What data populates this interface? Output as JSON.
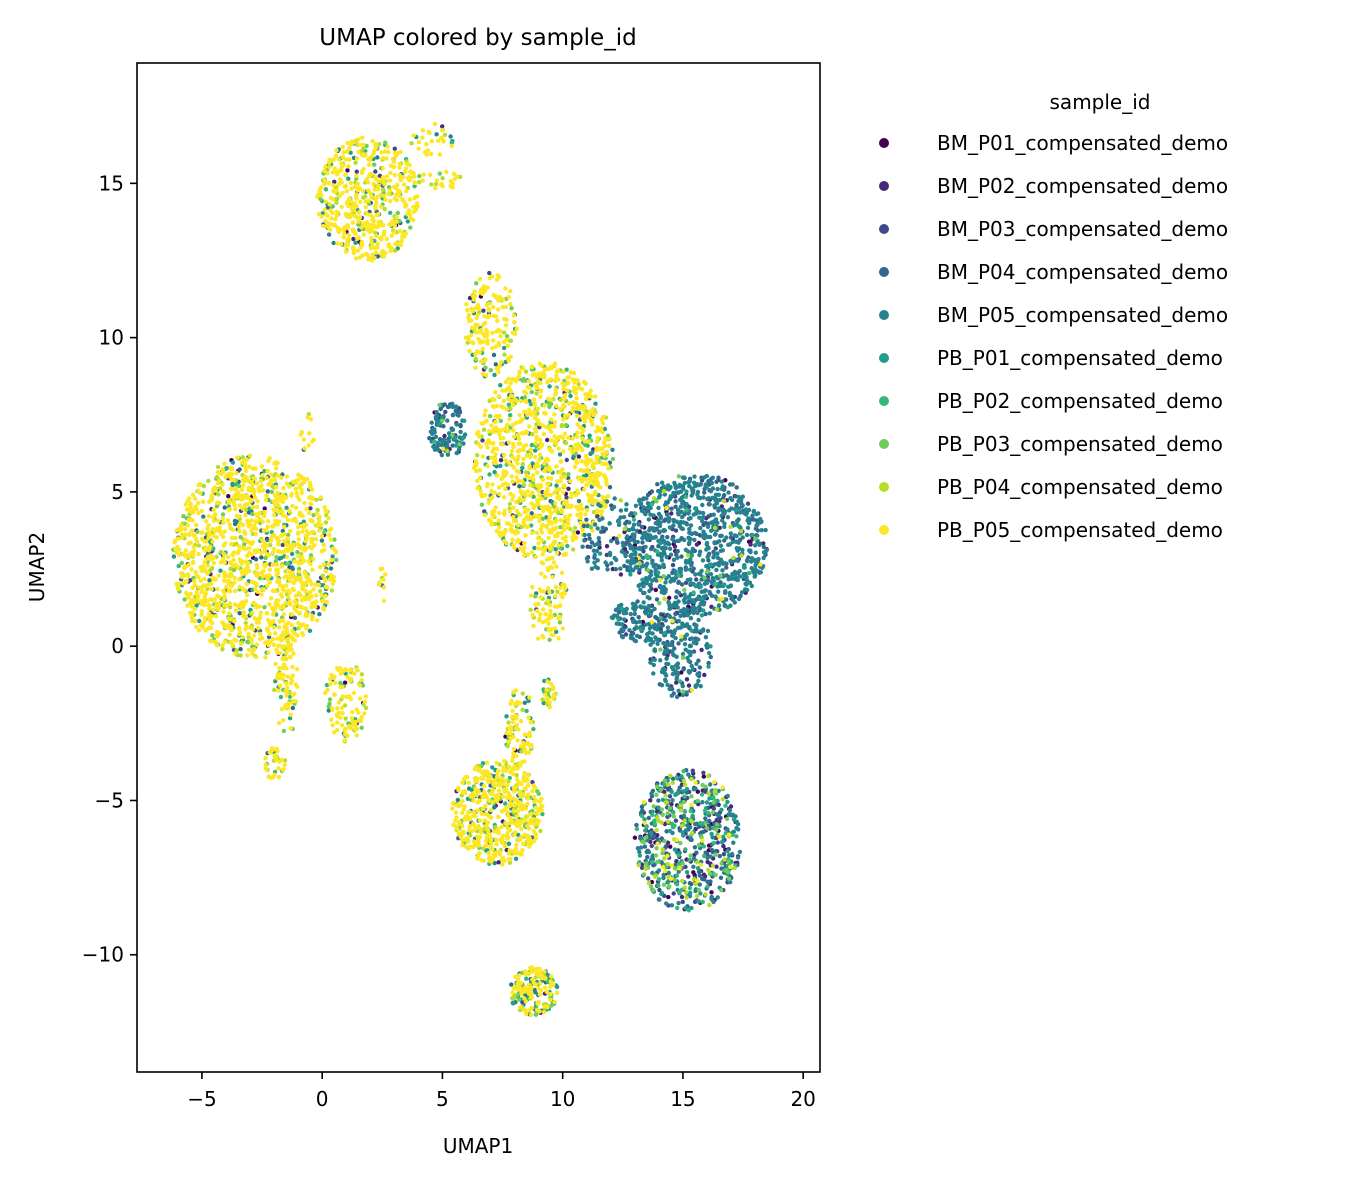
{
  "chart_data": {
    "type": "scatter",
    "title": "UMAP colored by sample_id",
    "xlabel": "UMAP1",
    "ylabel": "UMAP2",
    "xlim": [
      -7.7,
      20.7
    ],
    "ylim": [
      -13.8,
      18.9
    ],
    "xticks": [
      -5,
      0,
      5,
      10,
      15,
      20
    ],
    "xtick_labels": [
      "−5",
      "0",
      "5",
      "10",
      "15",
      "20"
    ],
    "yticks": [
      -10,
      -5,
      0,
      5,
      10,
      15
    ],
    "ytick_labels": [
      "−10",
      "−5",
      "0",
      "5",
      "10",
      "15"
    ],
    "grid": false,
    "legend": {
      "title": "sample_id",
      "placement": "outside-right",
      "entries": [
        {
          "label": "BM_P01_compensated_demo",
          "color": "#440154"
        },
        {
          "label": "BM_P02_compensated_demo",
          "color": "#482878"
        },
        {
          "label": "BM_P03_compensated_demo",
          "color": "#3e4989"
        },
        {
          "label": "BM_P04_compensated_demo",
          "color": "#31688e"
        },
        {
          "label": "BM_P05_compensated_demo",
          "color": "#26828e"
        },
        {
          "label": "PB_P01_compensated_demo",
          "color": "#1f9e89"
        },
        {
          "label": "PB_P02_compensated_demo",
          "color": "#35b779"
        },
        {
          "label": "PB_P03_compensated_demo",
          "color": "#6ece58"
        },
        {
          "label": "PB_P04_compensated_demo",
          "color": "#b5de2b"
        },
        {
          "label": "PB_P05_compensated_demo",
          "color": "#fde725"
        }
      ]
    },
    "clusters": [
      {
        "name": "left-large",
        "cx": -2.8,
        "cy": 2.9,
        "rx": 3.4,
        "ry": 3.3,
        "n": 1400,
        "weights": [
          0.01,
          0.01,
          0.01,
          0.02,
          0.02,
          0.05,
          0.03,
          0.07,
          0.08,
          0.7
        ]
      },
      {
        "name": "left-stem",
        "cx": -1.5,
        "cy": -1.2,
        "rx": 0.5,
        "ry": 1.8,
        "n": 90,
        "weights": [
          0.01,
          0.01,
          0.01,
          0.02,
          0.02,
          0.05,
          0.03,
          0.07,
          0.08,
          0.7
        ]
      },
      {
        "name": "left-foot",
        "cx": -2.0,
        "cy": -3.8,
        "rx": 0.5,
        "ry": 0.5,
        "n": 40,
        "weights": [
          0.01,
          0.01,
          0.01,
          0.02,
          0.02,
          0.05,
          0.03,
          0.07,
          0.08,
          0.7
        ]
      },
      {
        "name": "left-arm",
        "cx": 1.0,
        "cy": -1.8,
        "rx": 0.9,
        "ry": 1.3,
        "n": 110,
        "weights": [
          0.01,
          0.01,
          0.01,
          0.02,
          0.02,
          0.05,
          0.03,
          0.07,
          0.08,
          0.7
        ]
      },
      {
        "name": "left-thread",
        "cx": -0.6,
        "cy": 7.0,
        "rx": 0.3,
        "ry": 0.8,
        "n": 12,
        "weights": [
          0.01,
          0.01,
          0.01,
          0.02,
          0.02,
          0.05,
          0.03,
          0.07,
          0.08,
          0.7
        ]
      },
      {
        "name": "mid-thread",
        "cx": 2.5,
        "cy": 2.0,
        "rx": 0.15,
        "ry": 0.6,
        "n": 10,
        "weights": [
          0.01,
          0.01,
          0.01,
          0.02,
          0.02,
          0.05,
          0.03,
          0.07,
          0.08,
          0.7
        ]
      },
      {
        "name": "top-round",
        "cx": 1.9,
        "cy": 14.5,
        "rx": 2.1,
        "ry": 2.0,
        "n": 520,
        "weights": [
          0.01,
          0.01,
          0.01,
          0.02,
          0.03,
          0.05,
          0.05,
          0.08,
          0.08,
          0.66
        ]
      },
      {
        "name": "top-spur-upper",
        "cx": 4.6,
        "cy": 16.4,
        "rx": 0.9,
        "ry": 0.6,
        "n": 30,
        "weights": [
          0.01,
          0.01,
          0.01,
          0.02,
          0.03,
          0.05,
          0.05,
          0.08,
          0.08,
          0.66
        ]
      },
      {
        "name": "top-spur-lower",
        "cx": 4.8,
        "cy": 15.1,
        "rx": 1.0,
        "ry": 0.3,
        "n": 25,
        "weights": [
          0.01,
          0.01,
          0.01,
          0.02,
          0.03,
          0.05,
          0.05,
          0.08,
          0.08,
          0.66
        ]
      },
      {
        "name": "center-big",
        "cx": 9.2,
        "cy": 6.0,
        "rx": 2.9,
        "ry": 3.2,
        "n": 1100,
        "weights": [
          0.01,
          0.01,
          0.01,
          0.02,
          0.02,
          0.05,
          0.03,
          0.06,
          0.07,
          0.72
        ]
      },
      {
        "name": "center-neck",
        "cx": 7.0,
        "cy": 10.4,
        "rx": 1.1,
        "ry": 1.7,
        "n": 170,
        "weights": [
          0.01,
          0.01,
          0.01,
          0.02,
          0.02,
          0.05,
          0.03,
          0.06,
          0.07,
          0.72
        ]
      },
      {
        "name": "center-stem",
        "cx": 9.4,
        "cy": 1.4,
        "rx": 0.8,
        "ry": 1.4,
        "n": 90,
        "weights": [
          0.01,
          0.01,
          0.01,
          0.02,
          0.02,
          0.05,
          0.03,
          0.06,
          0.07,
          0.72
        ]
      },
      {
        "name": "center-teal-patch",
        "cx": 5.2,
        "cy": 7.0,
        "rx": 0.8,
        "ry": 0.9,
        "n": 130,
        "weights": [
          0.04,
          0.06,
          0.08,
          0.22,
          0.5,
          0.04,
          0.02,
          0.02,
          0.01,
          0.01
        ]
      },
      {
        "name": "teal-blob",
        "cx": 15.5,
        "cy": 3.3,
        "rx": 3.0,
        "ry": 2.3,
        "n": 950,
        "weights": [
          0.03,
          0.05,
          0.06,
          0.14,
          0.66,
          0.02,
          0.01,
          0.01,
          0.01,
          0.01
        ]
      },
      {
        "name": "teal-tail",
        "cx": 14.9,
        "cy": -0.1,
        "rx": 1.3,
        "ry": 1.6,
        "n": 230,
        "weights": [
          0.03,
          0.05,
          0.06,
          0.14,
          0.66,
          0.02,
          0.01,
          0.01,
          0.01,
          0.01
        ]
      },
      {
        "name": "teal-lower-left",
        "cx": 13.1,
        "cy": 0.8,
        "rx": 1.1,
        "ry": 0.7,
        "n": 110,
        "weights": [
          0.03,
          0.05,
          0.06,
          0.14,
          0.66,
          0.02,
          0.01,
          0.01,
          0.01,
          0.01
        ]
      },
      {
        "name": "teal-bridge",
        "cx": 12.0,
        "cy": 3.5,
        "rx": 1.3,
        "ry": 1.3,
        "n": 110,
        "weights": [
          0.05,
          0.1,
          0.1,
          0.2,
          0.48,
          0.03,
          0.01,
          0.01,
          0.01,
          0.01
        ]
      },
      {
        "name": "lower-pear",
        "cx": 7.3,
        "cy": -5.4,
        "rx": 1.9,
        "ry": 1.7,
        "n": 560,
        "weights": [
          0.01,
          0.01,
          0.01,
          0.02,
          0.03,
          0.05,
          0.04,
          0.07,
          0.08,
          0.68
        ]
      },
      {
        "name": "lower-neck",
        "cx": 8.2,
        "cy": -2.6,
        "rx": 0.6,
        "ry": 1.3,
        "n": 90,
        "weights": [
          0.01,
          0.01,
          0.01,
          0.02,
          0.03,
          0.05,
          0.04,
          0.07,
          0.08,
          0.68
        ]
      },
      {
        "name": "lower-tip",
        "cx": 9.4,
        "cy": -1.5,
        "rx": 0.3,
        "ry": 0.5,
        "n": 30,
        "weights": [
          0.01,
          0.01,
          0.01,
          0.02,
          0.03,
          0.05,
          0.04,
          0.07,
          0.08,
          0.68
        ]
      },
      {
        "name": "mixed-round",
        "cx": 15.2,
        "cy": -6.3,
        "rx": 2.2,
        "ry": 2.3,
        "n": 650,
        "weights": [
          0.06,
          0.1,
          0.12,
          0.17,
          0.17,
          0.09,
          0.09,
          0.1,
          0.06,
          0.04
        ]
      },
      {
        "name": "bottom-small",
        "cx": 8.8,
        "cy": -11.2,
        "rx": 1.0,
        "ry": 0.8,
        "n": 180,
        "weights": [
          0.01,
          0.02,
          0.03,
          0.06,
          0.12,
          0.08,
          0.06,
          0.1,
          0.12,
          0.4
        ]
      }
    ]
  }
}
